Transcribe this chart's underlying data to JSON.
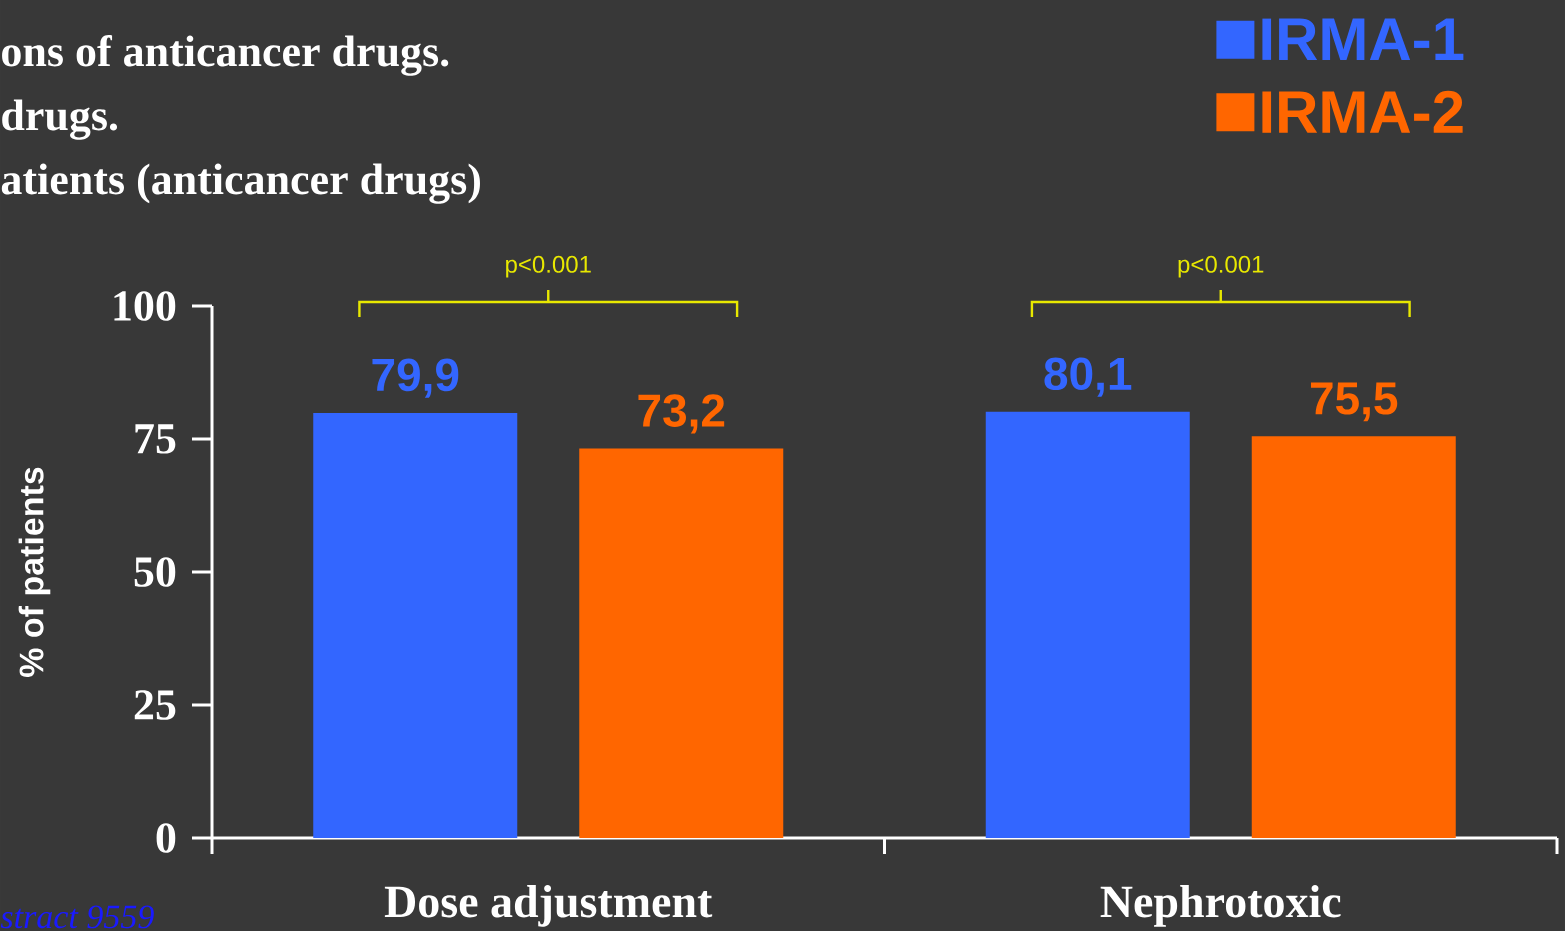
{
  "chart_data": {
    "type": "bar",
    "ylabel": "% of patients",
    "categories": [
      "Dose adjustment",
      "Nephrotoxic"
    ],
    "series": [
      {
        "name": "IRMA-1",
        "color": "#3366ff",
        "values": [
          79.9,
          80.1
        ],
        "value_labels": [
          "79,9",
          "80,1"
        ]
      },
      {
        "name": "IRMA-2",
        "color": "#ff6600",
        "values": [
          73.2,
          75.5
        ],
        "value_labels": [
          "73,2",
          "75,5"
        ]
      }
    ],
    "ylim": [
      0,
      100
    ],
    "yticks": [
      0,
      25,
      50,
      75,
      100
    ],
    "legend": "top right",
    "annotations": [
      "ons of anticancer drugs.",
      "drugs.",
      "atients (anticancer drugs)",
      "p<0.001",
      "p<0.001",
      "stract 9559"
    ]
  }
}
